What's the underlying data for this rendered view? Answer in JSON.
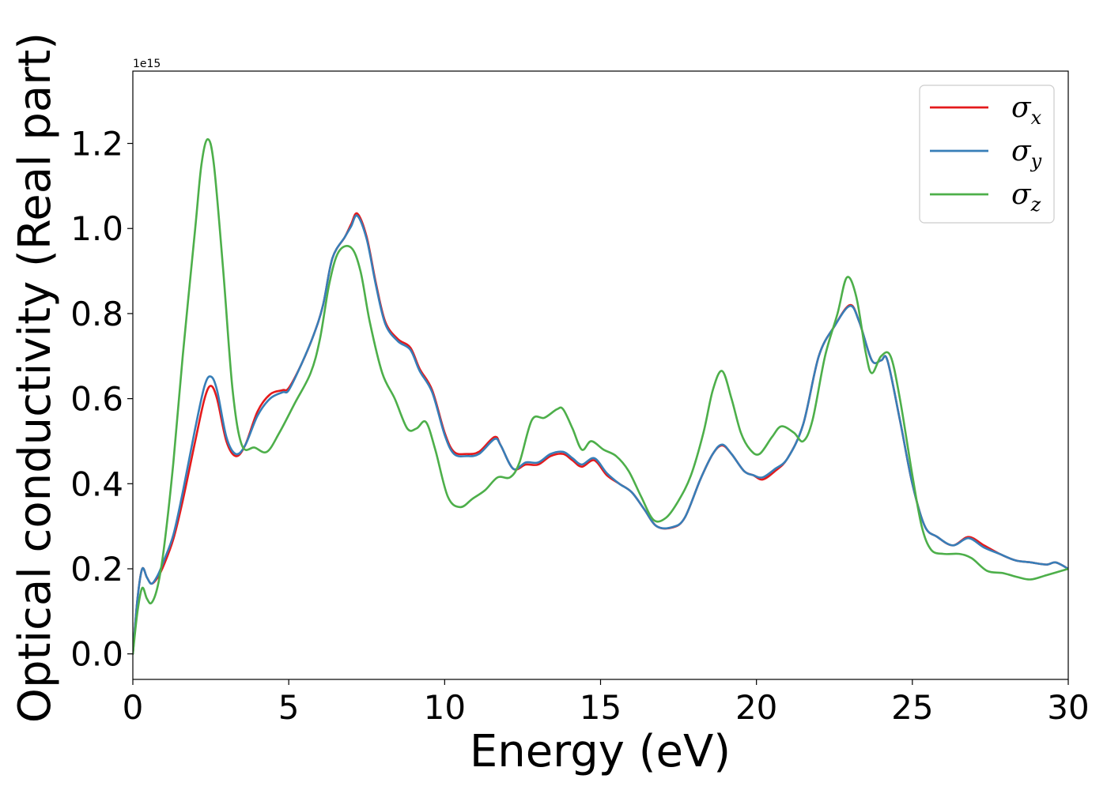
{
  "chart_data": {
    "type": "line",
    "title": "",
    "xlabel": "Energy (eV)",
    "ylabel": "Optical conductivity (Real part)",
    "y_offset_label": "1e15",
    "xlim": [
      0,
      30
    ],
    "ylim": [
      -0.06,
      1.37
    ],
    "x_ticks": [
      0,
      5,
      10,
      15,
      20,
      25,
      30
    ],
    "x_tick_labels": [
      "0",
      "5",
      "10",
      "15",
      "20",
      "25",
      "30"
    ],
    "y_ticks": [
      0.0,
      0.2,
      0.4,
      0.6,
      0.8,
      1.0,
      1.2
    ],
    "y_tick_labels": [
      "0.0",
      "0.2",
      "0.4",
      "0.6",
      "0.8",
      "1.0",
      "1.2"
    ],
    "grid": false,
    "legend_position": "top-right",
    "series": [
      {
        "name": "σx",
        "base": "σ",
        "sub": "x",
        "color": "#e41a1c",
        "points": [
          [
            0,
            0.0
          ],
          [
            0.15,
            0.13
          ],
          [
            0.3,
            0.2
          ],
          [
            0.45,
            0.18
          ],
          [
            0.6,
            0.165
          ],
          [
            0.8,
            0.18
          ],
          [
            1.0,
            0.21
          ],
          [
            1.3,
            0.27
          ],
          [
            1.6,
            0.36
          ],
          [
            2.0,
            0.5
          ],
          [
            2.3,
            0.6
          ],
          [
            2.5,
            0.63
          ],
          [
            2.7,
            0.6
          ],
          [
            3.0,
            0.5
          ],
          [
            3.3,
            0.465
          ],
          [
            3.6,
            0.49
          ],
          [
            4.0,
            0.57
          ],
          [
            4.4,
            0.61
          ],
          [
            4.8,
            0.62
          ],
          [
            5.0,
            0.625
          ],
          [
            5.4,
            0.68
          ],
          [
            5.8,
            0.75
          ],
          [
            6.1,
            0.82
          ],
          [
            6.4,
            0.93
          ],
          [
            6.8,
            0.98
          ],
          [
            7.0,
            1.01
          ],
          [
            7.2,
            1.035
          ],
          [
            7.5,
            0.98
          ],
          [
            7.8,
            0.87
          ],
          [
            8.1,
            0.78
          ],
          [
            8.5,
            0.74
          ],
          [
            8.9,
            0.72
          ],
          [
            9.2,
            0.67
          ],
          [
            9.6,
            0.62
          ],
          [
            10.0,
            0.52
          ],
          [
            10.3,
            0.475
          ],
          [
            10.7,
            0.47
          ],
          [
            11.1,
            0.475
          ],
          [
            11.6,
            0.51
          ],
          [
            11.8,
            0.49
          ],
          [
            12.2,
            0.435
          ],
          [
            12.6,
            0.445
          ],
          [
            13.0,
            0.445
          ],
          [
            13.4,
            0.465
          ],
          [
            13.8,
            0.47
          ],
          [
            14.1,
            0.455
          ],
          [
            14.4,
            0.44
          ],
          [
            14.8,
            0.455
          ],
          [
            15.2,
            0.42
          ],
          [
            15.6,
            0.4
          ],
          [
            16.0,
            0.38
          ],
          [
            16.4,
            0.34
          ],
          [
            16.8,
            0.3
          ],
          [
            17.3,
            0.297
          ],
          [
            17.7,
            0.32
          ],
          [
            18.2,
            0.41
          ],
          [
            18.6,
            0.47
          ],
          [
            18.9,
            0.49
          ],
          [
            19.2,
            0.47
          ],
          [
            19.6,
            0.43
          ],
          [
            19.9,
            0.42
          ],
          [
            20.2,
            0.41
          ],
          [
            20.6,
            0.43
          ],
          [
            21.0,
            0.46
          ],
          [
            21.5,
            0.54
          ],
          [
            22.0,
            0.7
          ],
          [
            22.5,
            0.77
          ],
          [
            23.0,
            0.82
          ],
          [
            23.3,
            0.78
          ],
          [
            23.7,
            0.69
          ],
          [
            24.0,
            0.69
          ],
          [
            24.2,
            0.69
          ],
          [
            24.6,
            0.55
          ],
          [
            25.0,
            0.4
          ],
          [
            25.4,
            0.3
          ],
          [
            25.8,
            0.275
          ],
          [
            26.3,
            0.255
          ],
          [
            26.8,
            0.275
          ],
          [
            27.3,
            0.255
          ],
          [
            27.8,
            0.235
          ],
          [
            28.3,
            0.22
          ],
          [
            28.8,
            0.215
          ],
          [
            29.3,
            0.21
          ],
          [
            29.6,
            0.215
          ],
          [
            30,
            0.2
          ]
        ]
      },
      {
        "name": "σy",
        "base": "σ",
        "sub": "y",
        "color": "#377eb8",
        "points": [
          [
            0,
            0.0
          ],
          [
            0.15,
            0.13
          ],
          [
            0.3,
            0.2
          ],
          [
            0.45,
            0.18
          ],
          [
            0.6,
            0.165
          ],
          [
            0.8,
            0.185
          ],
          [
            1.0,
            0.22
          ],
          [
            1.3,
            0.28
          ],
          [
            1.6,
            0.38
          ],
          [
            2.0,
            0.53
          ],
          [
            2.3,
            0.63
          ],
          [
            2.5,
            0.652
          ],
          [
            2.7,
            0.62
          ],
          [
            3.0,
            0.51
          ],
          [
            3.3,
            0.47
          ],
          [
            3.6,
            0.49
          ],
          [
            4.0,
            0.56
          ],
          [
            4.4,
            0.6
          ],
          [
            4.8,
            0.615
          ],
          [
            5.0,
            0.62
          ],
          [
            5.4,
            0.68
          ],
          [
            5.8,
            0.75
          ],
          [
            6.1,
            0.82
          ],
          [
            6.4,
            0.93
          ],
          [
            6.8,
            0.98
          ],
          [
            7.0,
            1.005
          ],
          [
            7.2,
            1.03
          ],
          [
            7.5,
            0.975
          ],
          [
            7.8,
            0.865
          ],
          [
            8.1,
            0.775
          ],
          [
            8.5,
            0.735
          ],
          [
            8.9,
            0.715
          ],
          [
            9.2,
            0.665
          ],
          [
            9.6,
            0.615
          ],
          [
            10.0,
            0.515
          ],
          [
            10.3,
            0.47
          ],
          [
            10.7,
            0.465
          ],
          [
            11.1,
            0.47
          ],
          [
            11.6,
            0.505
          ],
          [
            11.8,
            0.49
          ],
          [
            12.2,
            0.435
          ],
          [
            12.6,
            0.45
          ],
          [
            13.0,
            0.45
          ],
          [
            13.4,
            0.47
          ],
          [
            13.8,
            0.475
          ],
          [
            14.1,
            0.46
          ],
          [
            14.4,
            0.445
          ],
          [
            14.8,
            0.46
          ],
          [
            15.2,
            0.425
          ],
          [
            15.6,
            0.4
          ],
          [
            16.0,
            0.38
          ],
          [
            16.4,
            0.34
          ],
          [
            16.8,
            0.3
          ],
          [
            17.3,
            0.298
          ],
          [
            17.7,
            0.32
          ],
          [
            18.2,
            0.41
          ],
          [
            18.6,
            0.47
          ],
          [
            18.9,
            0.492
          ],
          [
            19.2,
            0.47
          ],
          [
            19.6,
            0.43
          ],
          [
            19.9,
            0.42
          ],
          [
            20.2,
            0.415
          ],
          [
            20.6,
            0.435
          ],
          [
            21.0,
            0.46
          ],
          [
            21.5,
            0.54
          ],
          [
            22.0,
            0.7
          ],
          [
            22.5,
            0.77
          ],
          [
            23.0,
            0.818
          ],
          [
            23.3,
            0.78
          ],
          [
            23.7,
            0.69
          ],
          [
            24.0,
            0.69
          ],
          [
            24.2,
            0.69
          ],
          [
            24.6,
            0.55
          ],
          [
            25.0,
            0.4
          ],
          [
            25.4,
            0.3
          ],
          [
            25.8,
            0.275
          ],
          [
            26.3,
            0.255
          ],
          [
            26.8,
            0.272
          ],
          [
            27.3,
            0.25
          ],
          [
            27.8,
            0.235
          ],
          [
            28.3,
            0.22
          ],
          [
            28.8,
            0.215
          ],
          [
            29.3,
            0.21
          ],
          [
            29.6,
            0.215
          ],
          [
            30,
            0.2
          ]
        ]
      },
      {
        "name": "σz",
        "base": "σ",
        "sub": "z",
        "color": "#4daf4a",
        "points": [
          [
            0,
            0.0
          ],
          [
            0.15,
            0.1
          ],
          [
            0.3,
            0.155
          ],
          [
            0.45,
            0.13
          ],
          [
            0.6,
            0.12
          ],
          [
            0.8,
            0.16
          ],
          [
            1.0,
            0.25
          ],
          [
            1.3,
            0.45
          ],
          [
            1.6,
            0.7
          ],
          [
            2.0,
            1.0
          ],
          [
            2.2,
            1.15
          ],
          [
            2.4,
            1.21
          ],
          [
            2.6,
            1.15
          ],
          [
            2.9,
            0.9
          ],
          [
            3.2,
            0.62
          ],
          [
            3.5,
            0.49
          ],
          [
            3.9,
            0.485
          ],
          [
            4.3,
            0.475
          ],
          [
            4.7,
            0.52
          ],
          [
            5.2,
            0.59
          ],
          [
            5.7,
            0.66
          ],
          [
            6.0,
            0.74
          ],
          [
            6.3,
            0.87
          ],
          [
            6.6,
            0.945
          ],
          [
            7.0,
            0.955
          ],
          [
            7.3,
            0.9
          ],
          [
            7.6,
            0.78
          ],
          [
            8.0,
            0.66
          ],
          [
            8.4,
            0.6
          ],
          [
            8.8,
            0.53
          ],
          [
            9.1,
            0.53
          ],
          [
            9.4,
            0.545
          ],
          [
            9.7,
            0.48
          ],
          [
            10.1,
            0.37
          ],
          [
            10.5,
            0.345
          ],
          [
            10.9,
            0.365
          ],
          [
            11.3,
            0.385
          ],
          [
            11.7,
            0.415
          ],
          [
            12.1,
            0.415
          ],
          [
            12.4,
            0.45
          ],
          [
            12.8,
            0.55
          ],
          [
            13.2,
            0.555
          ],
          [
            13.6,
            0.575
          ],
          [
            13.8,
            0.575
          ],
          [
            14.1,
            0.53
          ],
          [
            14.4,
            0.48
          ],
          [
            14.7,
            0.5
          ],
          [
            15.1,
            0.48
          ],
          [
            15.5,
            0.465
          ],
          [
            15.9,
            0.43
          ],
          [
            16.3,
            0.37
          ],
          [
            16.7,
            0.315
          ],
          [
            17.1,
            0.32
          ],
          [
            17.5,
            0.36
          ],
          [
            17.9,
            0.42
          ],
          [
            18.3,
            0.52
          ],
          [
            18.6,
            0.62
          ],
          [
            18.9,
            0.665
          ],
          [
            19.2,
            0.6
          ],
          [
            19.5,
            0.52
          ],
          [
            19.8,
            0.48
          ],
          [
            20.1,
            0.47
          ],
          [
            20.5,
            0.51
          ],
          [
            20.8,
            0.535
          ],
          [
            21.2,
            0.52
          ],
          [
            21.5,
            0.5
          ],
          [
            21.8,
            0.55
          ],
          [
            22.2,
            0.7
          ],
          [
            22.6,
            0.8
          ],
          [
            22.9,
            0.885
          ],
          [
            23.2,
            0.84
          ],
          [
            23.5,
            0.71
          ],
          [
            23.7,
            0.66
          ],
          [
            24.0,
            0.7
          ],
          [
            24.3,
            0.7
          ],
          [
            24.6,
            0.6
          ],
          [
            25.0,
            0.42
          ],
          [
            25.3,
            0.3
          ],
          [
            25.6,
            0.245
          ],
          [
            26.0,
            0.235
          ],
          [
            26.5,
            0.235
          ],
          [
            26.9,
            0.225
          ],
          [
            27.4,
            0.195
          ],
          [
            27.9,
            0.19
          ],
          [
            28.4,
            0.18
          ],
          [
            28.8,
            0.175
          ],
          [
            29.3,
            0.185
          ],
          [
            30,
            0.2
          ]
        ]
      }
    ]
  }
}
